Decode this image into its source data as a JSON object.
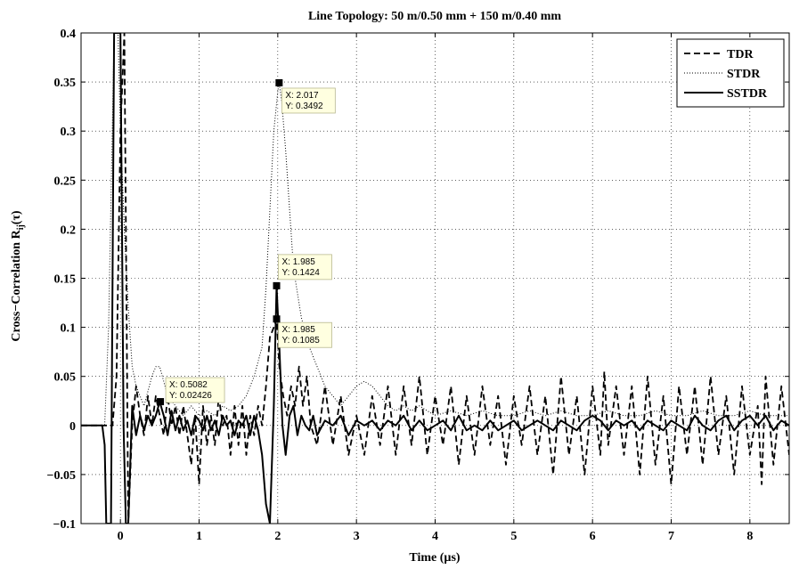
{
  "chart_data": {
    "type": "line",
    "title": "Line Topology: 50 m/0.50 mm + 150 m/0.40 mm",
    "xlabel": "Time (µs)",
    "ylabel": "Cross−Correlation R",
    "ylabel_sub": "ij",
    "ylabel_tail": "(τ)",
    "xlim": [
      -0.5,
      8.5
    ],
    "ylim": [
      -0.1,
      0.4
    ],
    "xticks": [
      0,
      1,
      2,
      3,
      4,
      5,
      6,
      7,
      8
    ],
    "xtick_labels": [
      "0",
      "1",
      "2",
      "3",
      "4",
      "5",
      "6",
      "7",
      "8"
    ],
    "yticks": [
      -0.1,
      -0.05,
      0,
      0.05,
      0.1,
      0.15,
      0.2,
      0.25,
      0.3,
      0.35,
      0.4
    ],
    "ytick_labels": [
      "−0.1",
      "−0.05",
      "0",
      "0.05",
      "0.1",
      "0.15",
      "0.2",
      "0.25",
      "0.3",
      "0.35",
      "0.4"
    ],
    "grid": true,
    "legend_position": "top-right",
    "series": [
      {
        "name": "TDR",
        "style": "dashed",
        "x": [
          -0.5,
          -0.2,
          -0.18,
          -0.1,
          -0.05,
          0.0,
          0.05,
          0.1,
          0.15,
          0.2,
          0.25,
          0.3,
          0.35,
          0.4,
          0.45,
          0.5,
          0.55,
          0.6,
          0.65,
          0.7,
          0.75,
          0.8,
          0.85,
          0.9,
          0.95,
          1.0,
          1.05,
          1.1,
          1.15,
          1.2,
          1.25,
          1.3,
          1.35,
          1.4,
          1.45,
          1.5,
          1.55,
          1.6,
          1.65,
          1.7,
          1.75,
          1.8,
          1.85,
          1.9,
          1.95,
          1.985,
          2.02,
          2.07,
          2.12,
          2.17,
          2.22,
          2.27,
          2.32,
          2.37,
          2.42,
          2.5,
          2.6,
          2.7,
          2.8,
          2.9,
          3.0,
          3.1,
          3.2,
          3.3,
          3.4,
          3.5,
          3.6,
          3.7,
          3.8,
          3.9,
          4.0,
          4.1,
          4.2,
          4.3,
          4.4,
          4.5,
          4.6,
          4.7,
          4.8,
          4.9,
          5.0,
          5.1,
          5.2,
          5.3,
          5.4,
          5.5,
          5.6,
          5.7,
          5.8,
          5.9,
          6.0,
          6.1,
          6.15,
          6.2,
          6.3,
          6.4,
          6.5,
          6.6,
          6.7,
          6.8,
          6.9,
          7.0,
          7.1,
          7.2,
          7.3,
          7.4,
          7.5,
          7.6,
          7.7,
          7.8,
          7.9,
          8.0,
          8.1,
          8.15,
          8.2,
          8.3,
          8.4,
          8.5
        ],
        "y": [
          0,
          0,
          0,
          0,
          0.05,
          0.3,
          0.4,
          -0.1,
          0.0,
          0.04,
          0.01,
          -0.01,
          0.03,
          0.0,
          0.03,
          0.01,
          -0.01,
          0.03,
          0.0,
          0.02,
          -0.01,
          0.02,
          -0.01,
          -0.04,
          0.01,
          -0.06,
          0.02,
          -0.02,
          0.01,
          -0.02,
          0.03,
          0.0,
          0.01,
          -0.03,
          0.02,
          -0.02,
          0.02,
          -0.03,
          0.01,
          -0.01,
          0.02,
          0.0,
          0.04,
          0.09,
          0.1,
          0.1085,
          0.06,
          0.03,
          0.01,
          0.04,
          0.02,
          0.06,
          0.02,
          0.05,
          0.0,
          -0.02,
          0.04,
          -0.02,
          0.03,
          -0.03,
          0.01,
          -0.03,
          0.03,
          -0.02,
          0.04,
          -0.03,
          0.04,
          -0.02,
          0.05,
          -0.03,
          0.03,
          -0.02,
          0.04,
          -0.04,
          0.03,
          -0.03,
          0.04,
          -0.02,
          0.03,
          -0.04,
          0.03,
          -0.02,
          0.04,
          -0.03,
          0.03,
          -0.05,
          0.05,
          -0.03,
          0.03,
          -0.05,
          0.04,
          -0.03,
          0.055,
          -0.02,
          0.04,
          -0.03,
          0.04,
          -0.05,
          0.05,
          -0.04,
          0.03,
          -0.06,
          0.04,
          -0.03,
          0.04,
          -0.04,
          0.05,
          -0.03,
          0.03,
          -0.05,
          0.04,
          -0.03,
          0.02,
          -0.06,
          0.05,
          -0.04,
          0.04,
          -0.03
        ]
      },
      {
        "name": "STDR",
        "style": "dotted",
        "x": [
          -0.5,
          -0.2,
          -0.15,
          -0.08,
          -0.03,
          0.0,
          0.05,
          0.1,
          0.15,
          0.2,
          0.3,
          0.4,
          0.45,
          0.5,
          0.6,
          0.7,
          0.8,
          0.9,
          1.0,
          1.1,
          1.2,
          1.3,
          1.4,
          1.5,
          1.6,
          1.7,
          1.8,
          1.85,
          1.9,
          1.95,
          2.0,
          2.017,
          2.05,
          2.1,
          2.15,
          2.2,
          2.3,
          2.4,
          2.5,
          2.6,
          2.7,
          2.8,
          2.9,
          3.0,
          3.1,
          3.2,
          3.3,
          3.4,
          3.5,
          3.6,
          3.7,
          3.8,
          4.0,
          4.2,
          4.4,
          4.6,
          4.8,
          5.0,
          5.2,
          5.4,
          5.6,
          5.8,
          6.0,
          6.2,
          6.4,
          6.6,
          6.8,
          7.0,
          7.2,
          7.4,
          7.6,
          7.8,
          8.0,
          8.2,
          8.4,
          8.5
        ],
        "y": [
          0,
          0,
          0.1,
          0.4,
          0.4,
          0.3,
          0.2,
          0.12,
          0.06,
          0.04,
          0.02,
          0.05,
          0.06,
          0.06,
          0.03,
          0.02,
          0.01,
          0.02,
          0.01,
          0.015,
          0.01,
          0.02,
          0.015,
          0.02,
          0.03,
          0.05,
          0.08,
          0.14,
          0.22,
          0.3,
          0.34,
          0.3492,
          0.33,
          0.28,
          0.22,
          0.16,
          0.11,
          0.08,
          0.06,
          0.04,
          0.03,
          0.02,
          0.03,
          0.04,
          0.045,
          0.04,
          0.03,
          0.02,
          0.015,
          0.02,
          0.015,
          0.02,
          0.01,
          0.015,
          0.01,
          0.015,
          0.01,
          0.01,
          0.015,
          0.01,
          0.015,
          0.01,
          0.01,
          0.015,
          0.01,
          0.01,
          0.015,
          0.01,
          0.01,
          0.015,
          0.01,
          0.01,
          0.015,
          0.01,
          0.01,
          0.01
        ]
      },
      {
        "name": "SSTDR",
        "style": "solid",
        "x": [
          -0.5,
          -0.23,
          -0.2,
          -0.18,
          -0.12,
          -0.08,
          -0.05,
          0.0,
          0.04,
          0.07,
          0.1,
          0.15,
          0.2,
          0.25,
          0.3,
          0.35,
          0.4,
          0.45,
          0.5,
          0.55,
          0.6,
          0.65,
          0.7,
          0.75,
          0.8,
          0.85,
          0.9,
          0.95,
          1.0,
          1.05,
          1.1,
          1.15,
          1.2,
          1.25,
          1.3,
          1.35,
          1.4,
          1.45,
          1.5,
          1.55,
          1.6,
          1.65,
          1.7,
          1.75,
          1.8,
          1.85,
          1.9,
          1.95,
          1.985,
          2.02,
          2.06,
          2.1,
          2.15,
          2.2,
          2.25,
          2.3,
          2.35,
          2.4,
          2.45,
          2.5,
          2.6,
          2.7,
          2.8,
          2.9,
          3.0,
          3.1,
          3.2,
          3.3,
          3.4,
          3.5,
          3.6,
          3.7,
          3.8,
          3.9,
          4.0,
          4.1,
          4.2,
          4.3,
          4.4,
          4.5,
          4.6,
          4.7,
          4.8,
          4.9,
          5.0,
          5.1,
          5.2,
          5.3,
          5.4,
          5.5,
          5.6,
          5.7,
          5.8,
          5.9,
          6.0,
          6.1,
          6.2,
          6.3,
          6.4,
          6.5,
          6.6,
          6.7,
          6.8,
          6.9,
          7.0,
          7.1,
          7.2,
          7.3,
          7.4,
          7.5,
          7.6,
          7.7,
          7.8,
          7.9,
          8.0,
          8.1,
          8.2,
          8.3,
          8.4,
          8.5
        ],
        "y": [
          0,
          0,
          -0.02,
          -0.1,
          -0.1,
          0.4,
          0.4,
          0.4,
          0.0,
          -0.1,
          -0.1,
          0.02,
          -0.01,
          0.01,
          -0.005,
          0.01,
          0.0,
          0.01,
          0.02426,
          0.01,
          -0.01,
          0.015,
          -0.005,
          0.01,
          -0.005,
          0.005,
          -0.01,
          0.01,
          0.005,
          -0.005,
          0.01,
          -0.005,
          0.005,
          -0.01,
          0.01,
          0.0,
          0.005,
          -0.01,
          0.005,
          0.0,
          0.01,
          -0.01,
          0.01,
          -0.005,
          -0.03,
          -0.08,
          -0.1,
          0.02,
          0.1424,
          0.08,
          0.0,
          -0.03,
          0.01,
          0.02,
          -0.01,
          0.01,
          0.0,
          -0.005,
          0.01,
          -0.01,
          0.005,
          0.0,
          0.01,
          -0.01,
          0.005,
          0.0,
          0.005,
          -0.005,
          0.005,
          0.0,
          0.01,
          -0.005,
          0.005,
          -0.005,
          0.0,
          0.005,
          -0.005,
          0.01,
          -0.005,
          0.0,
          -0.005,
          0.005,
          -0.005,
          0.0,
          0.005,
          -0.005,
          0.0,
          0.005,
          0.0,
          -0.005,
          0.005,
          0.0,
          -0.005,
          0.005,
          0.01,
          0.005,
          -0.005,
          0.005,
          0.0,
          0.005,
          -0.005,
          0.005,
          0.0,
          -0.005,
          0.005,
          0.0,
          -0.005,
          0.01,
          0.0,
          -0.005,
          0.005,
          0.01,
          -0.005,
          0.005,
          0.01,
          0.0,
          0.01,
          -0.005,
          0.005,
          0.0
        ]
      }
    ],
    "datatips": [
      {
        "x": 2.017,
        "y": 0.3492,
        "lines": [
          "X: 2.017",
          "Y: 0.3492"
        ]
      },
      {
        "x": 1.985,
        "y": 0.1424,
        "lines": [
          "X: 1.985",
          "Y: 0.1424"
        ]
      },
      {
        "x": 1.985,
        "y": 0.1085,
        "lines": [
          "X: 1.985",
          "Y: 0.1085"
        ]
      },
      {
        "x": 0.5082,
        "y": 0.02426,
        "lines": [
          "X: 0.5082",
          "Y: 0.02426"
        ]
      }
    ]
  }
}
